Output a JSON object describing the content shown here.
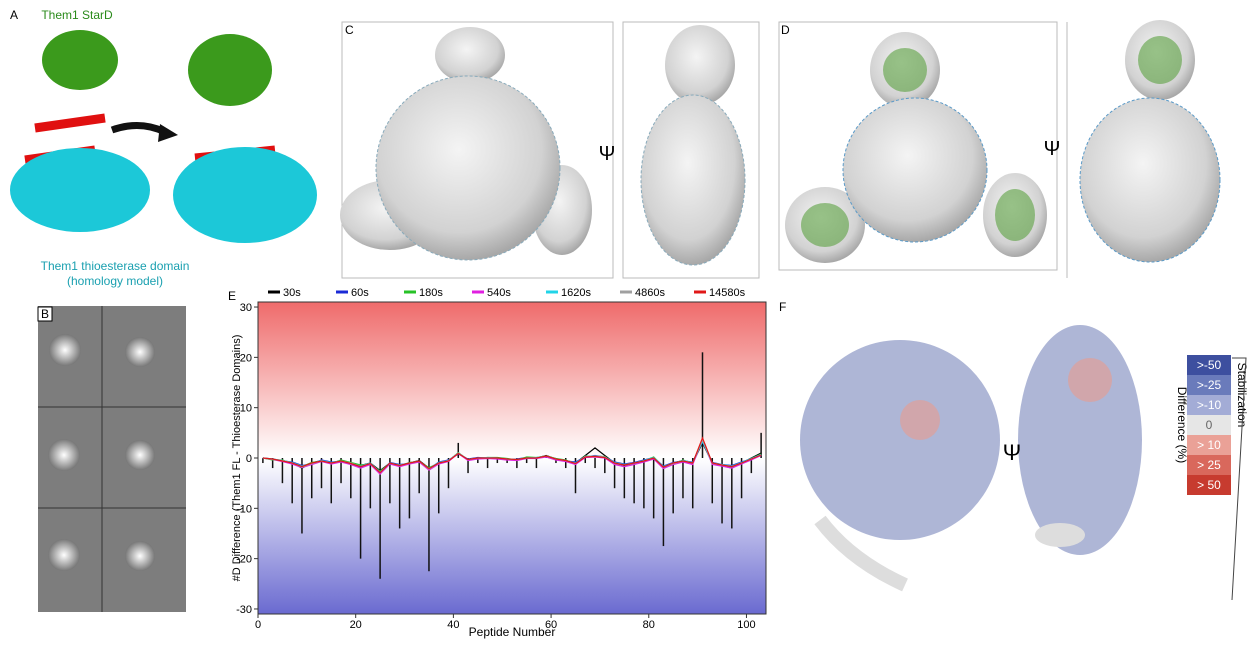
{
  "panel_labels": {
    "a": "A",
    "b": "B",
    "c": "C",
    "d": "D",
    "e": "E",
    "f": "F"
  },
  "panel_a": {
    "top_label": "Them1 StarD",
    "bottom_label_1": "Them1 thioesterase domain",
    "bottom_label_2": "(homology model)"
  },
  "rotation_symbol": "Ψ",
  "panel_f_legend": {
    "title": "Stabilization",
    "axis_label": "Difference (%)",
    "levels": [
      {
        "label": ">-50",
        "color": "#3d4f9f"
      },
      {
        "label": ">-25",
        "color": "#6a7bbb"
      },
      {
        "label": ">-10",
        "color": "#a3acd6"
      },
      {
        "label": "0",
        "color": "#e6e6e6"
      },
      {
        "label": "> 10",
        "color": "#eaa197"
      },
      {
        "label": "> 25",
        "color": "#d9685c"
      },
      {
        "label": "> 50",
        "color": "#c73b2f"
      }
    ]
  },
  "chart_data": {
    "type": "line",
    "ylabel": "#D Difference (Them1 FL - Thioesterase Domains)",
    "xlabel": "Peptide Number",
    "xlim": [
      0,
      104
    ],
    "ylim": [
      -31,
      31
    ],
    "xticks": [
      0,
      20,
      40,
      60,
      80,
      100
    ],
    "yticks": [
      -30,
      -20,
      -10,
      0,
      10,
      20,
      30
    ],
    "background_gradient": {
      "top": "#ef6b6b",
      "middle": "#ffffff",
      "bottom": "#6a6ad0"
    },
    "bar_color": "#111111",
    "x": [
      1,
      3,
      5,
      7,
      9,
      11,
      13,
      15,
      17,
      19,
      21,
      23,
      25,
      27,
      29,
      31,
      33,
      35,
      37,
      39,
      41,
      43,
      45,
      47,
      49,
      51,
      53,
      55,
      57,
      59,
      61,
      63,
      65,
      67,
      69,
      71,
      73,
      75,
      77,
      79,
      81,
      83,
      85,
      87,
      89,
      91,
      93,
      95,
      97,
      99,
      101,
      103
    ],
    "bar_values": [
      -1,
      -2,
      -5,
      -9,
      -15,
      -8,
      -6,
      -9,
      -5,
      -8,
      -20,
      -10,
      -24,
      -9,
      -14,
      -12,
      -7,
      -22.5,
      -11,
      -6,
      3,
      -3,
      -1,
      -2,
      -1,
      -1,
      -2,
      -1,
      -2,
      0.5,
      -1,
      -2,
      -7,
      -1,
      -2,
      -3,
      -6,
      -8,
      -9,
      -10,
      -12,
      -17.5,
      -11,
      -8,
      -10,
      21,
      -9,
      -13,
      -14,
      -8,
      -3,
      5
    ],
    "series": [
      {
        "name": "30s",
        "color": "#000000",
        "values": [
          0,
          -0.3,
          -0.5,
          -1,
          -2,
          -1,
          -0.5,
          -1,
          -0.5,
          -1,
          -1.5,
          -1,
          -2.5,
          -1,
          -1.5,
          -1,
          -0.5,
          -2,
          -1,
          -0.5,
          1,
          -0.3,
          0,
          0,
          0,
          -0.2,
          -0.3,
          0,
          0,
          0.5,
          -0.2,
          -0.5,
          -1,
          0.5,
          2,
          0.5,
          -1,
          -1.5,
          -1,
          -0.5,
          0,
          -2,
          -1,
          -0.5,
          -1,
          3,
          -1,
          -1.5,
          -2,
          -1,
          0,
          1
        ]
      },
      {
        "name": "60s",
        "color": "#1a2ad6",
        "values": [
          0,
          -0.2,
          -0.6,
          -0.8,
          -1.5,
          -1.2,
          -0.4,
          -0.8,
          -0.7,
          -1.2,
          -1.8,
          -1.1,
          -3,
          -0.9,
          -1.3,
          -1.1,
          -0.6,
          -2.2,
          -0.8,
          -0.4,
          0.8,
          -0.2,
          0.1,
          0,
          -0.1,
          -0.3,
          -0.2,
          0.1,
          0,
          0.3,
          -0.3,
          -0.6,
          -0.8,
          0.2,
          0.5,
          0.2,
          -0.8,
          -1.2,
          -0.9,
          -0.4,
          0.1,
          -1.6,
          -0.9,
          -0.6,
          -0.8,
          3.2,
          -0.9,
          -1.3,
          -1.5,
          -0.8,
          -0.2,
          0.6
        ]
      },
      {
        "name": "180s",
        "color": "#27c227",
        "values": [
          0,
          -0.4,
          -0.4,
          -1.1,
          -1.7,
          -0.9,
          -0.6,
          -1.1,
          -0.4,
          -0.9,
          -1.4,
          -1.2,
          -2.6,
          -1.1,
          -1.6,
          -0.9,
          -0.7,
          -1.9,
          -1.1,
          -0.6,
          1.1,
          -0.4,
          -0.1,
          0.1,
          0.1,
          -0.1,
          -0.4,
          0.2,
          0.1,
          0.4,
          -0.1,
          -0.4,
          -1.2,
          0.4,
          0.3,
          0.3,
          -1.1,
          -1.4,
          -1.1,
          -0.6,
          0.2,
          -1.8,
          -1.2,
          -0.4,
          -1.1,
          3.4,
          -1.1,
          -1.4,
          -1.8,
          -1.1,
          -0.1,
          0.8
        ]
      },
      {
        "name": "540s",
        "color": "#e020e0",
        "values": [
          0,
          -0.3,
          -0.7,
          -1.2,
          -1.9,
          -1.3,
          -0.7,
          -1.2,
          -0.8,
          -1.3,
          -2,
          -1.3,
          -3.2,
          -1.2,
          -1.7,
          -1.2,
          -0.8,
          -2.4,
          -1.2,
          -0.7,
          0.9,
          -0.5,
          -0.2,
          -0.1,
          -0.2,
          -0.4,
          -0.5,
          -0.1,
          -0.1,
          0.2,
          -0.4,
          -0.7,
          -1.3,
          0.1,
          0.2,
          0,
          -1.3,
          -1.7,
          -1.3,
          -0.8,
          -0.2,
          -2.1,
          -1.3,
          -0.8,
          -1.3,
          3.5,
          -1.3,
          -1.6,
          -2,
          -1.2,
          -0.4,
          0.5
        ]
      },
      {
        "name": "1620s",
        "color": "#21d4e8",
        "values": [
          0,
          -0.2,
          -0.5,
          -0.9,
          -1.6,
          -1.1,
          -0.5,
          -0.9,
          -0.6,
          -1.1,
          -1.6,
          -1,
          -2.8,
          -1,
          -1.4,
          -1,
          -0.6,
          -2.1,
          -0.9,
          -0.5,
          1,
          -0.3,
          0,
          0.1,
          0,
          -0.2,
          -0.3,
          0,
          0.1,
          0.4,
          -0.2,
          -0.5,
          -1,
          0.3,
          0.4,
          0.2,
          -0.9,
          -1.3,
          -1,
          -0.5,
          0.1,
          -1.7,
          -1,
          -0.5,
          -0.9,
          3.3,
          -1,
          -1.3,
          -1.6,
          -0.9,
          -0.1,
          0.7
        ]
      },
      {
        "name": "4860s",
        "color": "#a0a0a0",
        "values": [
          0,
          -0.3,
          -0.5,
          -1,
          -1.8,
          -1.1,
          -0.6,
          -1,
          -0.6,
          -1,
          -1.7,
          -1.1,
          -2.9,
          -1,
          -1.5,
          -1,
          -0.6,
          -2.2,
          -1,
          -0.5,
          1,
          -0.3,
          0,
          0,
          0,
          -0.2,
          -0.3,
          0,
          0,
          0.4,
          -0.2,
          -0.5,
          -1.1,
          0.3,
          0.4,
          0.2,
          -1,
          -1.4,
          -1,
          -0.6,
          0,
          -1.8,
          -1.1,
          -0.6,
          -1,
          3.6,
          -1,
          -1.4,
          -1.7,
          -1,
          -0.2,
          0.6
        ]
      },
      {
        "name": "14580s",
        "color": "#e01818",
        "values": [
          0,
          -0.2,
          -0.6,
          -1,
          -1.7,
          -1,
          -0.6,
          -1,
          -0.6,
          -1.1,
          -1.7,
          -1.1,
          -2.9,
          -1,
          -1.5,
          -1,
          -0.6,
          -2.1,
          -1,
          -0.6,
          0.9,
          -0.3,
          0,
          0,
          0,
          -0.2,
          -0.3,
          0,
          0,
          0.4,
          -0.2,
          -0.5,
          -1.1,
          0.2,
          0.3,
          0.1,
          -1,
          -1.4,
          -1,
          -0.6,
          0,
          -1.8,
          -1,
          -0.6,
          -1,
          4,
          -1,
          -1.4,
          -1.7,
          -1,
          -0.2,
          0.6
        ]
      }
    ]
  }
}
